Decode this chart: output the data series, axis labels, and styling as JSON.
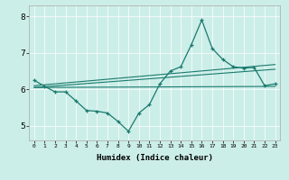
{
  "xlabel": "Humidex (Indice chaleur)",
  "xlim": [
    -0.5,
    23.5
  ],
  "ylim": [
    4.6,
    8.3
  ],
  "yticks": [
    5,
    6,
    7,
    8
  ],
  "xticks": [
    0,
    1,
    2,
    3,
    4,
    5,
    6,
    7,
    8,
    9,
    10,
    11,
    12,
    13,
    14,
    15,
    16,
    17,
    18,
    19,
    20,
    21,
    22,
    23
  ],
  "bg_color": "#cceee8",
  "line_color": "#1a7a6e",
  "zigzag_x": [
    0,
    1,
    2,
    3,
    4,
    5,
    6,
    7,
    8,
    9,
    10,
    11,
    12,
    13,
    14,
    15,
    16,
    17,
    18,
    19,
    20,
    21,
    22,
    23
  ],
  "zigzag_y": [
    6.25,
    6.08,
    5.93,
    5.93,
    5.68,
    5.42,
    5.4,
    5.35,
    5.12,
    4.85,
    5.35,
    5.58,
    6.15,
    6.5,
    6.62,
    7.22,
    7.9,
    7.12,
    6.82,
    6.62,
    6.58,
    6.6,
    6.1,
    6.15
  ],
  "trend1_x": [
    0,
    23
  ],
  "trend1_y": [
    6.05,
    6.08
  ],
  "trend2_x": [
    0,
    23
  ],
  "trend2_y": [
    6.05,
    6.55
  ],
  "trend3_x": [
    0,
    23
  ],
  "trend3_y": [
    6.1,
    6.68
  ]
}
